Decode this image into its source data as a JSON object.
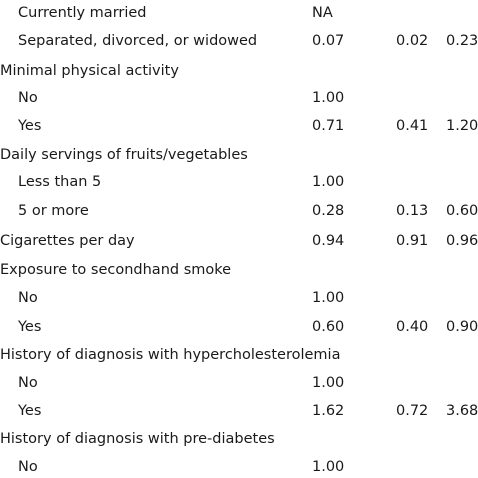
{
  "rows": [
    {
      "label": "Currently married",
      "or": "NA",
      "lo": "",
      "hi": "",
      "indent": true
    },
    {
      "label": "Separated, divorced, or widowed",
      "or": "0.07",
      "lo": "0.02",
      "hi": "0.23",
      "indent": true
    },
    {
      "label": "Minimal physical activity",
      "or": "",
      "lo": "",
      "hi": "",
      "indent": false
    },
    {
      "label": "No",
      "or": "1.00",
      "lo": "",
      "hi": "",
      "indent": true
    },
    {
      "label": "Yes",
      "or": "0.71",
      "lo": "0.41",
      "hi": "1.20",
      "indent": true
    },
    {
      "label": "Daily servings of fruits/vegetables",
      "or": "",
      "lo": "",
      "hi": "",
      "indent": false
    },
    {
      "label": "Less than 5",
      "or": "1.00",
      "lo": "",
      "hi": "",
      "indent": true
    },
    {
      "label": "5 or more",
      "or": "0.28",
      "lo": "0.13",
      "hi": "0.60",
      "indent": true
    },
    {
      "label": "Cigarettes per day",
      "or": "0.94",
      "lo": "0.91",
      "hi": "0.96",
      "indent": false
    },
    {
      "label": "Exposure to secondhand smoke",
      "or": "",
      "lo": "",
      "hi": "",
      "indent": false
    },
    {
      "label": "No",
      "or": "1.00",
      "lo": "",
      "hi": "",
      "indent": true
    },
    {
      "label": "Yes",
      "or": "0.60",
      "lo": "0.40",
      "hi": "0.90",
      "indent": true
    },
    {
      "label": "History of diagnosis with hypercholesterolemia",
      "or": "",
      "lo": "",
      "hi": "",
      "indent": false
    },
    {
      "label": "No",
      "or": "1.00",
      "lo": "",
      "hi": "",
      "indent": true
    },
    {
      "label": "Yes",
      "or": "1.62",
      "lo": "0.72",
      "hi": "3.68",
      "indent": true
    },
    {
      "label": "History of diagnosis with pre-diabetes",
      "or": "",
      "lo": "",
      "hi": "",
      "indent": false
    },
    {
      "label": "No",
      "or": "1.00",
      "lo": "",
      "hi": "",
      "indent": true
    }
  ]
}
